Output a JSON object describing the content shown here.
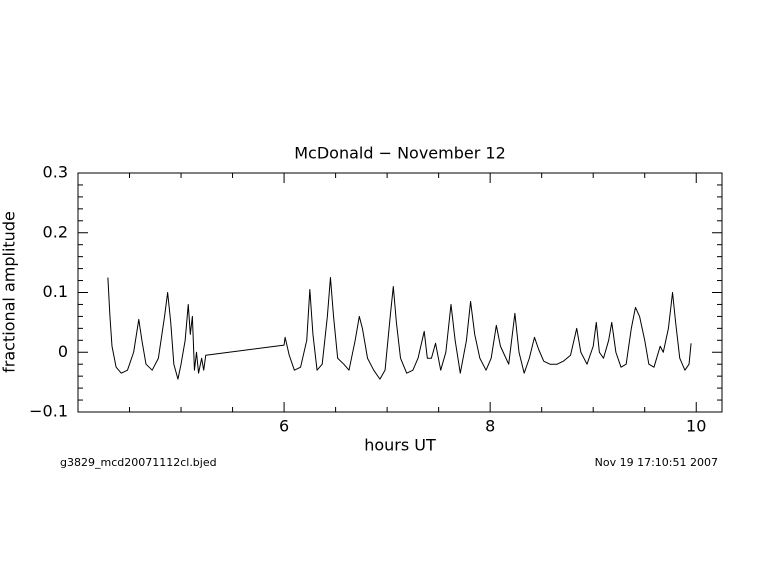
{
  "chart_data": {
    "type": "line",
    "title": "McDonald − November 12",
    "xlabel": "hours UT",
    "ylabel": "fractional amplitude",
    "footer_left": "g3829_mcd20071112cl.bjed",
    "footer_right": "Nov 19 17:10:51 2007",
    "color": "#000000",
    "xlim": [
      4,
      10.25
    ],
    "ylim": [
      -0.1,
      0.3
    ],
    "xticks": [
      6,
      8,
      10
    ],
    "xticks_minor": [
      4.5,
      5,
      5.5,
      6.5,
      7,
      7.5,
      8.5,
      9,
      9.5
    ],
    "yticks": [
      {
        "value": -0.1,
        "label": "−0.1"
      },
      0,
      0.1,
      0.2,
      0.3
    ],
    "yticks_minor": [
      -0.08,
      -0.06,
      -0.04,
      -0.02,
      0.02,
      0.04,
      0.06,
      0.08,
      0.12,
      0.14,
      0.16,
      0.18,
      0.22,
      0.24,
      0.26,
      0.28
    ],
    "x": [
      4.29,
      4.31,
      4.33,
      4.37,
      4.42,
      4.48,
      4.54,
      4.59,
      4.62,
      4.66,
      4.72,
      4.78,
      4.84,
      4.87,
      4.9,
      4.93,
      4.97,
      5.0,
      5.04,
      5.07,
      5.09,
      5.11,
      5.13,
      5.15,
      5.17,
      5.2,
      5.22,
      5.24,
      6.0,
      6.01,
      6.05,
      6.1,
      6.16,
      6.22,
      6.25,
      6.28,
      6.32,
      6.37,
      6.42,
      6.45,
      6.48,
      6.52,
      6.58,
      6.63,
      6.69,
      6.73,
      6.76,
      6.81,
      6.87,
      6.93,
      6.98,
      7.03,
      7.06,
      7.09,
      7.13,
      7.19,
      7.25,
      7.3,
      7.36,
      7.39,
      7.43,
      7.47,
      7.52,
      7.57,
      7.62,
      7.66,
      7.71,
      7.77,
      7.81,
      7.85,
      7.9,
      7.96,
      8.01,
      8.06,
      8.1,
      8.14,
      8.18,
      8.24,
      8.28,
      8.33,
      8.38,
      8.43,
      8.47,
      8.52,
      8.58,
      8.65,
      8.71,
      8.78,
      8.84,
      8.88,
      8.94,
      9.0,
      9.03,
      9.06,
      9.1,
      9.15,
      9.18,
      9.22,
      9.27,
      9.32,
      9.37,
      9.41,
      9.45,
      9.5,
      9.54,
      9.59,
      9.65,
      9.68,
      9.73,
      9.77,
      9.8,
      9.84,
      9.89,
      9.93,
      9.95
    ],
    "values": [
      0.125,
      0.06,
      0.01,
      -0.025,
      -0.035,
      -0.03,
      0.0,
      0.055,
      0.02,
      -0.02,
      -0.03,
      -0.01,
      0.06,
      0.1,
      0.05,
      -0.02,
      -0.045,
      -0.02,
      0.02,
      0.08,
      0.03,
      0.06,
      -0.03,
      0.0,
      -0.035,
      -0.01,
      -0.03,
      -0.005,
      0.012,
      0.025,
      -0.005,
      -0.03,
      -0.025,
      0.02,
      0.105,
      0.03,
      -0.03,
      -0.02,
      0.06,
      0.125,
      0.06,
      -0.01,
      -0.02,
      -0.03,
      0.02,
      0.06,
      0.04,
      -0.01,
      -0.03,
      -0.045,
      -0.03,
      0.06,
      0.11,
      0.05,
      -0.01,
      -0.035,
      -0.03,
      -0.01,
      0.035,
      -0.01,
      -0.01,
      0.015,
      -0.03,
      0.0,
      0.08,
      0.02,
      -0.035,
      0.02,
      0.085,
      0.03,
      -0.01,
      -0.03,
      -0.01,
      0.045,
      0.01,
      -0.005,
      -0.02,
      0.065,
      0.0,
      -0.035,
      -0.01,
      0.025,
      0.005,
      -0.015,
      -0.02,
      -0.02,
      -0.015,
      -0.005,
      0.04,
      0.0,
      -0.02,
      0.01,
      0.05,
      0.0,
      -0.01,
      0.02,
      0.05,
      0.0,
      -0.025,
      -0.02,
      0.04,
      0.075,
      0.06,
      0.02,
      -0.02,
      -0.025,
      0.01,
      0.0,
      0.04,
      0.1,
      0.05,
      -0.01,
      -0.03,
      -0.02,
      0.015
    ]
  }
}
